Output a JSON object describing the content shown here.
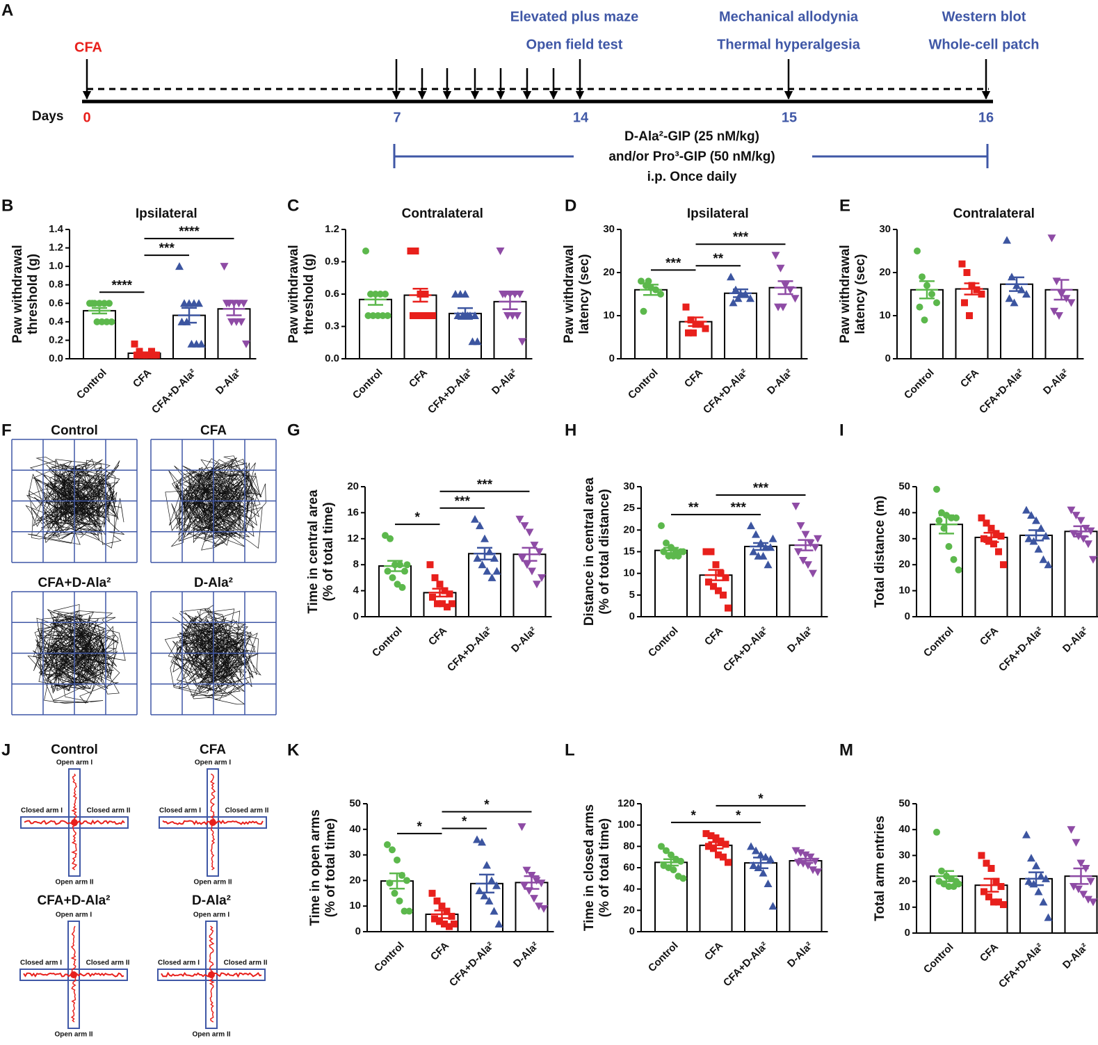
{
  "timeline": {
    "panel": "A",
    "start_label": "CFA",
    "tests": [
      {
        "lines": [
          "Elevated plus maze",
          "Open field test"
        ]
      },
      {
        "lines": [
          "Mechanical allodynia",
          "Thermal hyperalgesia"
        ]
      },
      {
        "lines": [
          "Western blot",
          "Whole-cell patch"
        ]
      }
    ],
    "axis_label": "Days",
    "days": [
      0,
      7,
      14,
      15,
      16
    ],
    "treatment": [
      "D-Ala²-GIP (25 nM/kg)",
      "and/or Pro³-GIP (50 nM/kg)",
      "i.p. Once daily"
    ]
  },
  "open_field": {
    "panel": "F",
    "labels": [
      "Control",
      "CFA",
      "CFA+D-Ala²",
      "D-Ala²"
    ]
  },
  "plus_maze": {
    "panel": "J",
    "labels": [
      "Control",
      "CFA",
      "CFA+D-Ala²",
      "D-Ala²"
    ],
    "arm_labels": [
      "Open arm I",
      "Closed arm I",
      "Closed arm II",
      "Open arm II"
    ]
  },
  "chart_data": [
    {
      "type": "bar",
      "panel": "B",
      "title": "Ipsilateral",
      "ylabel": [
        "Paw withdrawal",
        "threshold (g)"
      ],
      "categories": [
        "Control",
        "CFA",
        "CFA+D-Ala²",
        "D-Ala²"
      ],
      "colors": [
        "#5cb84c",
        "#e8201c",
        "#3c55a0",
        "#8e4ba5"
      ],
      "markers": [
        "circle",
        "square",
        "triangle",
        "triangle-down"
      ],
      "values": [
        0.52,
        0.06,
        0.47,
        0.54
      ],
      "errors": [
        0.03,
        0.01,
        0.08,
        0.07
      ],
      "points": [
        [
          0.6,
          0.6,
          0.6,
          0.6,
          0.6,
          0.6,
          0.4,
          0.4,
          0.4,
          0.4
        ],
        [
          0.16,
          0.08,
          0.04,
          0.04,
          0.04,
          0.04,
          0.04,
          0.04,
          0.08,
          0.04
        ],
        [
          1.0,
          0.6,
          0.6,
          0.6,
          0.6,
          0.4,
          0.4,
          0.16,
          0.16,
          0.16
        ],
        [
          1.0,
          0.6,
          0.6,
          0.6,
          0.6,
          0.6,
          0.4,
          0.4,
          0.4,
          0.16
        ]
      ],
      "ylim": [
        0,
        1.4
      ],
      "yticks": [
        {
          "value": 0,
          "label": "0.0"
        },
        0.2,
        0.4,
        0.6,
        0.8,
        {
          "value": 1,
          "label": "1.0"
        },
        1.2,
        1.4
      ],
      "significance": [
        {
          "groups": [
            0,
            1
          ],
          "label": "****"
        },
        {
          "groups": [
            1,
            2
          ],
          "label": "***"
        },
        {
          "groups": [
            1,
            3
          ],
          "label": "****"
        }
      ]
    },
    {
      "type": "bar",
      "panel": "C",
      "title": "Contralateral",
      "ylabel": [
        "Paw withdrawal",
        "threshold (g)"
      ],
      "categories": [
        "Control",
        "CFA",
        "CFA+D-Ala²",
        "D-Ala²"
      ],
      "colors": [
        "#5cb84c",
        "#e8201c",
        "#3c55a0",
        "#8e4ba5"
      ],
      "markers": [
        "circle",
        "square",
        "triangle",
        "triangle-down"
      ],
      "values": [
        0.55,
        0.59,
        0.42,
        0.53
      ],
      "errors": [
        0.05,
        0.06,
        0.05,
        0.07
      ],
      "points": [
        [
          1.0,
          0.6,
          0.6,
          0.6,
          0.6,
          0.4,
          0.4,
          0.4,
          0.4,
          0.4
        ],
        [
          1.0,
          1.0,
          0.6,
          0.6,
          0.4,
          0.4,
          0.4,
          0.4,
          0.4,
          0.4
        ],
        [
          0.6,
          0.6,
          0.6,
          0.4,
          0.4,
          0.4,
          0.4,
          0.4,
          0.16,
          0.16
        ],
        [
          1.0,
          0.6,
          0.6,
          0.6,
          0.6,
          0.6,
          0.4,
          0.4,
          0.4,
          0.16
        ]
      ],
      "ylim": [
        0,
        1.2
      ],
      "yticks": [
        {
          "value": 0,
          "label": "0.0"
        },
        0.3,
        0.6,
        0.9,
        1.2
      ],
      "significance": []
    },
    {
      "type": "bar",
      "panel": "D",
      "title": "Ipsilateral",
      "ylabel": [
        "Paw withdrawal",
        "latency (sec)"
      ],
      "categories": [
        "Control",
        "CFA",
        "CFA+D-Ala²",
        "D-Ala²"
      ],
      "colors": [
        "#5cb84c",
        "#e8201c",
        "#3c55a0",
        "#8e4ba5"
      ],
      "markers": [
        "circle",
        "square",
        "triangle",
        "triangle-down"
      ],
      "values": [
        16,
        8.6,
        15.2,
        16.5
      ],
      "errors": [
        1.2,
        1.0,
        0.9,
        1.5
      ],
      "points": [
        [
          18,
          17,
          16.5,
          16,
          15,
          11,
          18
        ],
        [
          12,
          9,
          8,
          8,
          7,
          6,
          6
        ],
        [
          19,
          16,
          15,
          15,
          14,
          13,
          14
        ],
        [
          24,
          21,
          17,
          16,
          14,
          12,
          12
        ]
      ],
      "ylim": [
        0,
        30
      ],
      "yticks": [
        0,
        10,
        20,
        30
      ],
      "significance": [
        {
          "groups": [
            0,
            1
          ],
          "label": "***"
        },
        {
          "groups": [
            1,
            2
          ],
          "label": "**"
        },
        {
          "groups": [
            1,
            3
          ],
          "label": "***"
        }
      ]
    },
    {
      "type": "bar",
      "panel": "E",
      "title": "Contralateral",
      "ylabel": [
        "Paw withdrawal",
        "latency (sec)"
      ],
      "categories": [
        "Control",
        "CFA",
        "CFA+D-Ala²",
        "D-Ala²"
      ],
      "colors": [
        "#5cb84c",
        "#e8201c",
        "#3c55a0",
        "#8e4ba5"
      ],
      "markers": [
        "circle",
        "square",
        "triangle",
        "triangle-down"
      ],
      "values": [
        16,
        16.2,
        17.3,
        16
      ],
      "errors": [
        2,
        1.3,
        1.6,
        2.3
      ],
      "points": [
        [
          25,
          19,
          17,
          15,
          13,
          12,
          9
        ],
        [
          22,
          20,
          17,
          16,
          15,
          13,
          10
        ],
        [
          27.5,
          19,
          17,
          16,
          15,
          14,
          13
        ],
        [
          28,
          18,
          15,
          14,
          13,
          11,
          10
        ]
      ],
      "ylim": [
        0,
        30
      ],
      "yticks": [
        0,
        10,
        20,
        30
      ],
      "significance": []
    },
    {
      "type": "bar",
      "panel": "G",
      "ylabel": [
        "Time in central area",
        "(% of total time)"
      ],
      "categories": [
        "Control",
        "CFA",
        "CFA+D-Ala²",
        "D-Ala²"
      ],
      "colors": [
        "#5cb84c",
        "#e8201c",
        "#3c55a0",
        "#8e4ba5"
      ],
      "markers": [
        "circle",
        "square",
        "triangle",
        "triangle-down"
      ],
      "values": [
        7.8,
        3.7,
        9.7,
        9.6
      ],
      "errors": [
        0.8,
        0.6,
        0.9,
        1.0
      ],
      "points": [
        [
          12.5,
          12,
          8,
          8,
          7,
          7,
          6,
          5,
          4.5,
          8
        ],
        [
          8,
          6,
          5,
          4,
          3.5,
          3,
          2,
          2,
          1.5,
          2
        ],
        [
          15,
          14,
          12,
          10,
          9,
          9,
          8,
          7,
          6,
          7
        ],
        [
          15,
          14,
          13,
          11,
          10,
          9,
          8,
          7,
          5,
          6
        ]
      ],
      "ylim": [
        0,
        20
      ],
      "yticks": [
        0,
        4,
        8,
        12,
        16,
        20
      ],
      "significance": [
        {
          "groups": [
            0,
            1
          ],
          "label": "*"
        },
        {
          "groups": [
            1,
            2
          ],
          "label": "***"
        },
        {
          "groups": [
            1,
            3
          ],
          "label": "***"
        }
      ]
    },
    {
      "type": "bar",
      "panel": "H",
      "ylabel": [
        "Distance in central area",
        "(% of total distance)"
      ],
      "categories": [
        "Control",
        "CFA",
        "CFA+D-Ala²",
        "D-Ala²"
      ],
      "colors": [
        "#5cb84c",
        "#e8201c",
        "#3c55a0",
        "#8e4ba5"
      ],
      "markers": [
        "circle",
        "square",
        "triangle",
        "triangle-down"
      ],
      "values": [
        15.3,
        9.6,
        16.2,
        16.5
      ],
      "errors": [
        0.6,
        1.2,
        0.8,
        1.2
      ],
      "points": [
        [
          21,
          17,
          16,
          15,
          15,
          15,
          14,
          14,
          14,
          15
        ],
        [
          15,
          15,
          12,
          10,
          9,
          8,
          7,
          6,
          5,
          2
        ],
        [
          21,
          19,
          17,
          16,
          16,
          15,
          14,
          14,
          12,
          18
        ],
        [
          25.5,
          21,
          19,
          17,
          16,
          15,
          13,
          12,
          10,
          18
        ]
      ],
      "ylim": [
        0,
        30
      ],
      "yticks": [
        0,
        5,
        10,
        15,
        20,
        25,
        30
      ],
      "significance": [
        {
          "groups": [
            0,
            1
          ],
          "label": "**"
        },
        {
          "groups": [
            1,
            2
          ],
          "label": "***"
        },
        {
          "groups": [
            1,
            3
          ],
          "label": "***"
        }
      ]
    },
    {
      "type": "bar",
      "panel": "I",
      "ylabel": [
        "Total distance (m)"
      ],
      "categories": [
        "Control",
        "CFA",
        "CFA+D-Ala²",
        "D-Ala²"
      ],
      "colors": [
        "#5cb84c",
        "#e8201c",
        "#3c55a0",
        "#8e4ba5"
      ],
      "markers": [
        "circle",
        "square",
        "triangle",
        "triangle-down"
      ],
      "values": [
        35.5,
        30.5,
        31.3,
        32.8
      ],
      "errors": [
        3.5,
        1.8,
        2.0,
        2.0
      ],
      "points": [
        [
          49,
          40,
          39,
          38,
          38,
          37,
          34,
          27,
          22,
          18
        ],
        [
          38,
          36,
          34,
          32,
          31,
          30,
          29,
          28,
          25,
          20
        ],
        [
          41,
          39,
          37,
          34,
          31,
          30,
          29,
          26,
          22,
          20
        ],
        [
          41,
          39,
          37,
          34,
          33,
          32,
          31,
          30,
          28,
          22
        ]
      ],
      "ylim": [
        0,
        50
      ],
      "yticks": [
        0,
        10,
        20,
        30,
        40,
        50
      ],
      "significance": []
    },
    {
      "type": "bar",
      "panel": "K",
      "ylabel": [
        "Time in open arms",
        "(% of total time)"
      ],
      "categories": [
        "Control",
        "CFA",
        "CFA+D-Ala²",
        "D-Ala²"
      ],
      "colors": [
        "#5cb84c",
        "#e8201c",
        "#3c55a0",
        "#8e4ba5"
      ],
      "markers": [
        "circle",
        "square",
        "triangle",
        "triangle-down"
      ],
      "values": [
        19.8,
        6.8,
        18.8,
        19.2
      ],
      "errors": [
        3.0,
        1.5,
        3.5,
        2.5
      ],
      "points": [
        [
          34,
          32,
          28,
          22,
          20,
          19,
          15,
          12,
          8,
          8
        ],
        [
          15,
          12,
          10,
          8,
          6,
          5,
          4,
          3,
          2,
          3
        ],
        [
          36,
          35,
          26,
          20,
          18,
          16,
          14,
          12,
          8,
          3
        ],
        [
          41,
          24,
          22,
          20,
          19,
          18,
          16,
          13,
          10,
          9
        ]
      ],
      "ylim": [
        0,
        50
      ],
      "yticks": [
        0,
        10,
        20,
        30,
        40,
        50
      ],
      "significance": [
        {
          "groups": [
            0,
            1
          ],
          "label": "*"
        },
        {
          "groups": [
            1,
            2
          ],
          "label": "*"
        },
        {
          "groups": [
            1,
            3
          ],
          "label": "*"
        }
      ]
    },
    {
      "type": "bar",
      "panel": "L",
      "ylabel": [
        "Time in closed arms",
        "(% of total time)"
      ],
      "categories": [
        "Control",
        "CFA",
        "CFA+D-Ala²",
        "D-Ala²"
      ],
      "colors": [
        "#5cb84c",
        "#e8201c",
        "#3c55a0",
        "#8e4ba5"
      ],
      "markers": [
        "circle",
        "square",
        "triangle",
        "triangle-down"
      ],
      "values": [
        65,
        81,
        64.5,
        66.5
      ],
      "errors": [
        3,
        3,
        5,
        2
      ],
      "points": [
        [
          80,
          76,
          72,
          68,
          66,
          62,
          60,
          58,
          52,
          50
        ],
        [
          92,
          90,
          88,
          85,
          82,
          80,
          78,
          72,
          70,
          65
        ],
        [
          80,
          76,
          72,
          70,
          68,
          62,
          60,
          55,
          45,
          24
        ],
        [
          76,
          74,
          72,
          70,
          66,
          65,
          64,
          62,
          58,
          56
        ]
      ],
      "ylim": [
        0,
        120
      ],
      "yticks": [
        0,
        20,
        40,
        60,
        80,
        100,
        120
      ],
      "significance": [
        {
          "groups": [
            0,
            1
          ],
          "label": "*"
        },
        {
          "groups": [
            1,
            2
          ],
          "label": "*"
        },
        {
          "groups": [
            1,
            3
          ],
          "label": "*"
        }
      ]
    },
    {
      "type": "bar",
      "panel": "M",
      "ylabel": [
        "Total arm entries"
      ],
      "categories": [
        "Control",
        "CFA",
        "CFA+D-Ala²",
        "D-Ala²"
      ],
      "colors": [
        "#5cb84c",
        "#e8201c",
        "#3c55a0",
        "#8e4ba5"
      ],
      "markers": [
        "circle",
        "square",
        "triangle",
        "triangle-down"
      ],
      "values": [
        22,
        18.5,
        21,
        22
      ],
      "errors": [
        2,
        2.5,
        2.5,
        3
      ],
      "points": [
        [
          39,
          24,
          22,
          21,
          20,
          20,
          19,
          18,
          18,
          19
        ],
        [
          30,
          27,
          25,
          20,
          18,
          16,
          14,
          12,
          12,
          11
        ],
        [
          38,
          29,
          26,
          22,
          21,
          20,
          19,
          16,
          12,
          6
        ],
        [
          40,
          35,
          27,
          25,
          20,
          18,
          17,
          15,
          13,
          12
        ]
      ],
      "ylim": [
        0,
        50
      ],
      "yticks": [
        0,
        10,
        20,
        30,
        40,
        50
      ],
      "significance": []
    }
  ]
}
